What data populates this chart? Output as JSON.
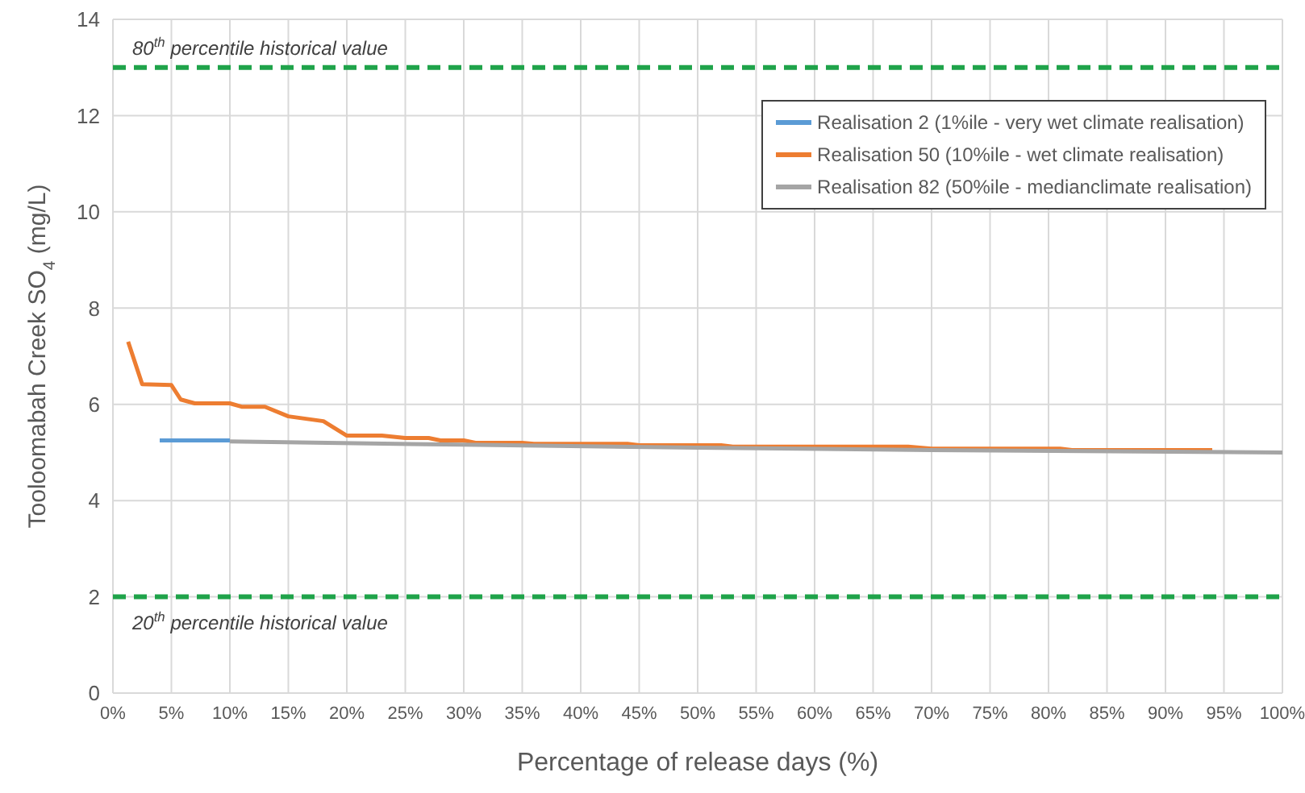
{
  "chart_data": {
    "type": "line",
    "xlabel": "Percentage of release days (%)",
    "ylabel": "Tooloomabah Creek SO$_{4}$ (mg/L)",
    "xlim": [
      0,
      100
    ],
    "xticks": [
      {
        "value": 0,
        "label": "0%"
      },
      {
        "value": 5,
        "label": "5%"
      },
      {
        "value": 10,
        "label": "10%"
      },
      {
        "value": 15,
        "label": "15%"
      },
      {
        "value": 20,
        "label": "20%"
      },
      {
        "value": 25,
        "label": "25%"
      },
      {
        "value": 30,
        "label": "30%"
      },
      {
        "value": 35,
        "label": "35%"
      },
      {
        "value": 40,
        "label": "40%"
      },
      {
        "value": 45,
        "label": "45%"
      },
      {
        "value": 50,
        "label": "50%"
      },
      {
        "value": 55,
        "label": "55%"
      },
      {
        "value": 60,
        "label": "60%"
      },
      {
        "value": 65,
        "label": "65%"
      },
      {
        "value": 70,
        "label": "70%"
      },
      {
        "value": 75,
        "label": "75%"
      },
      {
        "value": 80,
        "label": "80%"
      },
      {
        "value": 85,
        "label": "85%"
      },
      {
        "value": 90,
        "label": "90%"
      },
      {
        "value": 95,
        "label": "95%"
      },
      {
        "value": 100,
        "label": "100%"
      }
    ],
    "ylim": [
      0,
      14
    ],
    "yticks": [
      0,
      2,
      4,
      6,
      8,
      10,
      12,
      14
    ],
    "grid": true,
    "legend": "top right",
    "marker": "none",
    "line_style": "solid",
    "series": [
      {
        "name": "Realisation 2 (1%ile - very wet climate realisation)",
        "color": "#5b9bd5",
        "x": [
          4,
          10
        ],
        "values": [
          5.25,
          5.25
        ]
      },
      {
        "name": "Realisation 50 (10%ile - wet climate realisation)",
        "color": "#ed7d31",
        "x": [
          1.3,
          2.5,
          5,
          5.8,
          7,
          10,
          11,
          13,
          15,
          18,
          20,
          23,
          25,
          27,
          28,
          30,
          31,
          35,
          36,
          44,
          45,
          52,
          53,
          68,
          70,
          81,
          82,
          94
        ],
        "values": [
          7.3,
          6.42,
          6.4,
          6.1,
          6.02,
          6.02,
          5.95,
          5.95,
          5.75,
          5.65,
          5.35,
          5.35,
          5.3,
          5.3,
          5.25,
          5.25,
          5.2,
          5.2,
          5.18,
          5.18,
          5.15,
          5.15,
          5.12,
          5.12,
          5.08,
          5.08,
          5.05,
          5.05
        ]
      },
      {
        "name": "Realisation 82 (50%ile - medianclimate realisation)",
        "color": "#a5a5a5",
        "x": [
          10,
          30,
          50,
          70,
          100
        ],
        "values": [
          5.23,
          5.16,
          5.1,
          5.05,
          5.0
        ]
      }
    ],
    "ref_lines": [
      {
        "axis": "y",
        "value": 13,
        "label": "80$^{th}$ percentile  historical value",
        "color": "#1fa34a",
        "line_style": "dashed"
      },
      {
        "axis": "y",
        "value": 2,
        "label": "20$^{th}$ percentile  historical value",
        "color": "#1fa34a",
        "line_style": "dashed"
      }
    ]
  }
}
